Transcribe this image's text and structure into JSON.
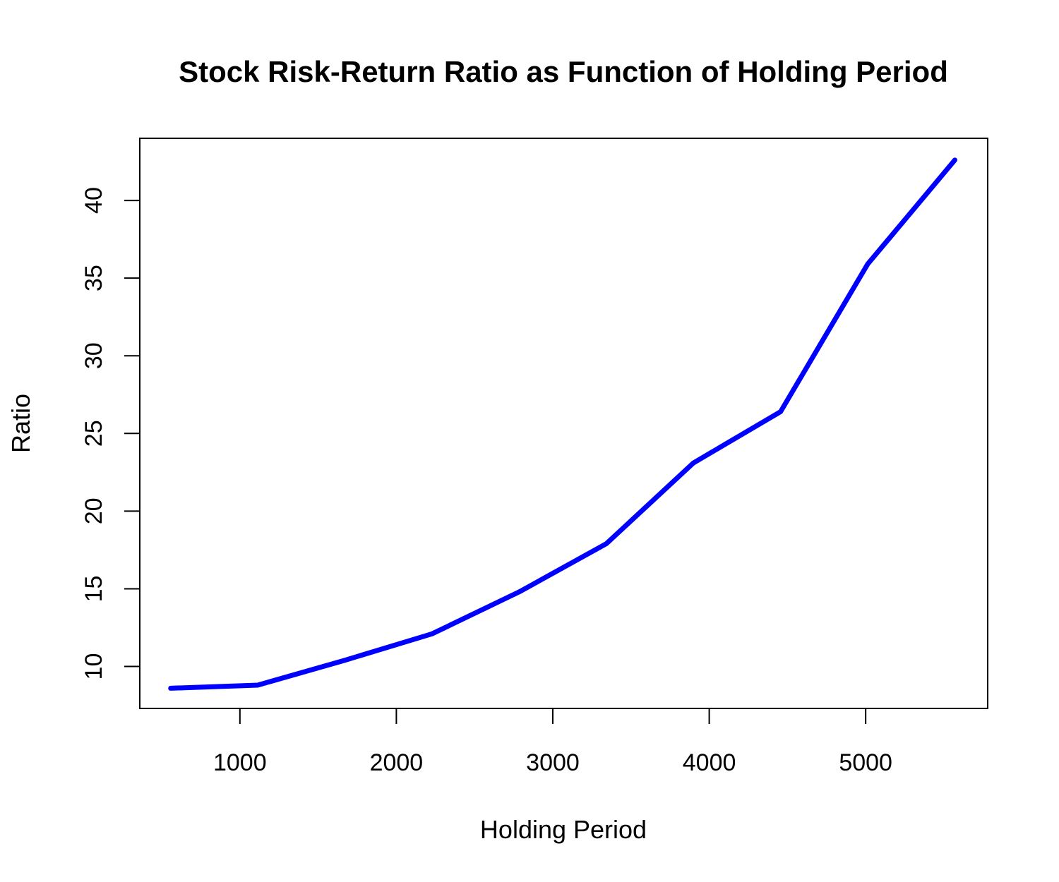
{
  "chart_data": {
    "type": "line",
    "title": "Stock Risk-Return Ratio as Function of Holding Period",
    "xlabel": "Holding Period",
    "ylabel": "Ratio",
    "xlim": [
      360,
      5780
    ],
    "ylim": [
      7.3,
      44
    ],
    "x_ticks": [
      1000,
      2000,
      3000,
      4000,
      5000
    ],
    "y_ticks": [
      10,
      15,
      20,
      25,
      30,
      35,
      40
    ],
    "grid": false,
    "legend": "none",
    "series": [
      {
        "color": "#0000ff",
        "x": [
          557,
          1114,
          1671,
          2228,
          2785,
          3342,
          3899,
          4456,
          5013,
          5570
        ],
        "y": [
          8.6,
          8.8,
          10.4,
          12.1,
          14.8,
          17.9,
          23.1,
          26.4,
          35.9,
          42.6
        ]
      }
    ]
  }
}
